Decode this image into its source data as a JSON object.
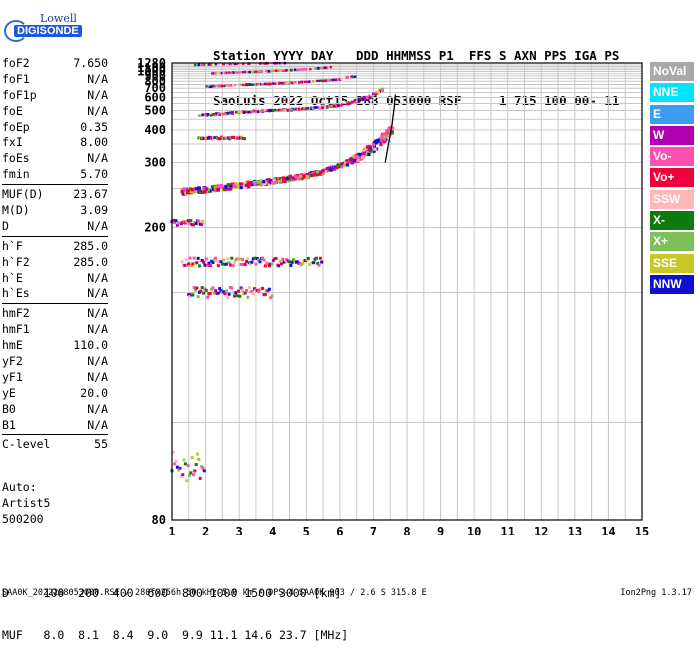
{
  "logo": {
    "line1": "Lowell",
    "line2": "DIGISONDE"
  },
  "header": {
    "line1": "Station YYYY DAY   DDD HHMMSS P1  FFS S AXN PPS IGA PS",
    "line2": "SaoLuis 2022 Oct15 288 053000 RSF     1 715 100 00- 11"
  },
  "params": [
    {
      "name": "foF2",
      "value": "7.650"
    },
    {
      "name": "foF1",
      "value": "N/A"
    },
    {
      "name": "foF1p",
      "value": "N/A"
    },
    {
      "name": "foE",
      "value": "N/A"
    },
    {
      "name": "foEp",
      "value": "0.35"
    },
    {
      "name": "fxI",
      "value": "8.00"
    },
    {
      "name": "foEs",
      "value": "N/A"
    },
    {
      "name": "fmin",
      "value": "5.70"
    },
    {
      "name": "MUF(D)",
      "value": "23.67"
    },
    {
      "name": "M(D)",
      "value": "3.09"
    },
    {
      "name": "D",
      "value": "N/A"
    },
    {
      "name": "h`F",
      "value": "285.0"
    },
    {
      "name": "h`F2",
      "value": "285.0"
    },
    {
      "name": "h`E",
      "value": "N/A"
    },
    {
      "name": "h`Es",
      "value": "N/A"
    },
    {
      "name": "hmF2",
      "value": "N/A"
    },
    {
      "name": "hmF1",
      "value": "N/A"
    },
    {
      "name": "hmE",
      "value": "110.0"
    },
    {
      "name": "yF2",
      "value": "N/A"
    },
    {
      "name": "yF1",
      "value": "N/A"
    },
    {
      "name": "yE",
      "value": "20.0"
    },
    {
      "name": "B0",
      "value": "N/A"
    },
    {
      "name": "B1",
      "value": "N/A"
    },
    {
      "name": "C-level",
      "value": "55"
    }
  ],
  "autoscale": {
    "line1": "Auto:",
    "line2": "Artist5",
    "line3": "500200"
  },
  "legend": [
    {
      "label": "NoVal",
      "color": "#a9a9a9"
    },
    {
      "label": "NNE",
      "color": "#00e5ff"
    },
    {
      "label": "E",
      "color": "#3b9cf0"
    },
    {
      "label": "W",
      "color": "#b000b0"
    },
    {
      "label": "Vo-",
      "color": "#ff4fb3"
    },
    {
      "label": "Vo+",
      "color": "#f0003c"
    },
    {
      "label": "SSW",
      "color": "#ffb8b8"
    },
    {
      "label": "X-",
      "color": "#0f7a0f"
    },
    {
      "label": "X+",
      "color": "#7fbf5a"
    },
    {
      "label": "SSE",
      "color": "#c7c72a"
    },
    {
      "label": "NNW",
      "color": "#1010d0"
    }
  ],
  "bottom": {
    "line1": "D     100  200  400  600  800 1000 1500 3000 [km]",
    "line2": "MUF   8.0  8.1  8.4  9.0  9.9 11.1 14.6 23.7 [MHz]"
  },
  "footer": "SAA0K_2022288053000.RSF / 280fx256h 50 kHz 5.0 km / DPS-4 SAA0K 903 / 2.6 S 315.8 E",
  "version": "Ion2Png 1.3.17",
  "chart_data": {
    "type": "scatter",
    "title": "",
    "xlabel": "",
    "ylabel": "",
    "xlim": [
      1,
      15
    ],
    "x_ticks": [
      1,
      2,
      3,
      4,
      5,
      6,
      7,
      8,
      9,
      10,
      11,
      12,
      13,
      14,
      15
    ],
    "y_ticks": [
      80,
      200,
      300,
      400,
      500,
      600,
      700,
      800,
      900,
      1000,
      1100,
      1280
    ],
    "y_scale": "reciprocal",
    "ylim": [
      80,
      1280
    ],
    "grid": true,
    "traces": [
      {
        "name": "",
        "hops": 1,
        "x": [
          1.3,
          2,
          3,
          4,
          5,
          5.5,
          6,
          6.5,
          7,
          7.3,
          7.6
        ],
        "y": [
          245,
          248,
          255,
          262,
          272,
          280,
          292,
          310,
          340,
          370,
          410
        ]
      },
      {
        "name": "",
        "hops": 2,
        "x": [
          1.8,
          2.5,
          3.5,
          4.5,
          5.5,
          6,
          6.5,
          7,
          7.3
        ],
        "y": [
          470,
          480,
          495,
          505,
          520,
          535,
          570,
          620,
          690
        ]
      },
      {
        "name": "",
        "hops": 3,
        "x": [
          2,
          3,
          4,
          5,
          6,
          6.5
        ],
        "y": [
          720,
          745,
          760,
          790,
          830,
          900
        ]
      },
      {
        "name": "",
        "hops": 4,
        "x": [
          2.2,
          3,
          4,
          5,
          5.8
        ],
        "y": [
          950,
          980,
          1010,
          1060,
          1130
        ]
      },
      {
        "name": "",
        "hops": 5,
        "x": [
          1.6,
          2.5,
          3.5,
          4.4
        ],
        "y": [
          1200,
          1230,
          1260,
          1280
        ]
      }
    ],
    "es_layers": [
      {
        "x0": 1.0,
        "x1": 2.0,
        "y": 90
      },
      {
        "x0": 1.0,
        "x1": 2.0,
        "y": 205
      },
      {
        "x0": 1.5,
        "x1": 4.0,
        "y": 150
      },
      {
        "x0": 1.3,
        "x1": 5.5,
        "y": 170
      },
      {
        "x0": 1.8,
        "x1": 3.2,
        "y": 370
      }
    ],
    "trace_fit": {
      "x": [
        7.35,
        7.45,
        7.55,
        7.62,
        7.65
      ],
      "y": [
        300,
        350,
        420,
        520,
        630
      ]
    }
  }
}
